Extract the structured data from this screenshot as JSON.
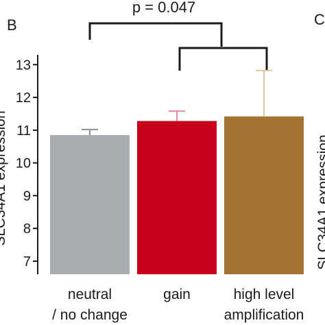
{
  "panel_letter": "B",
  "neighbor_panel_letter": "C",
  "neighbor_ylabel_fragment": "SLC34A1 expression",
  "significance_label": "p = 0.047",
  "chart_data": {
    "type": "bar",
    "ylabel": "SLC34A1 expression",
    "ylim": [
      6.6,
      13.3
    ],
    "yticks": [
      7,
      8,
      9,
      10,
      11,
      12,
      13
    ],
    "categories": [
      {
        "line1": "neutral",
        "line2": "/ no change"
      },
      {
        "line1": "gain",
        "line2": ""
      },
      {
        "line1": "high level",
        "line2": "amplification"
      }
    ],
    "values": [
      10.85,
      11.28,
      11.42
    ],
    "errors": [
      0.17,
      0.3,
      1.4
    ],
    "colors": [
      "#a7adb1",
      "#c8001b",
      "#a57434"
    ],
    "error_colors": [
      "#8a9095",
      "#e88a92",
      "#e0c49a"
    ],
    "grid": false,
    "legend": "none"
  }
}
